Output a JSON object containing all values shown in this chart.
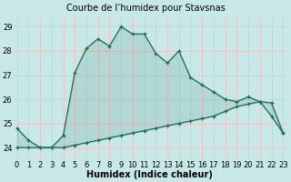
{
  "title": "Courbe de l’humidex pour Stavsnas",
  "xlabel": "Humidex (Indice chaleur)",
  "x": [
    0,
    1,
    2,
    3,
    4,
    5,
    6,
    7,
    8,
    9,
    10,
    11,
    12,
    13,
    14,
    15,
    16,
    17,
    18,
    19,
    20,
    21,
    22,
    23
  ],
  "line1": [
    24.8,
    24.3,
    24.0,
    24.0,
    24.5,
    27.1,
    28.1,
    28.5,
    28.2,
    29.0,
    28.7,
    28.7,
    27.9,
    27.5,
    28.0,
    26.9,
    26.6,
    26.3,
    26.0,
    25.9,
    26.1,
    25.9,
    25.3,
    24.6
  ],
  "line2": [
    24.0,
    24.0,
    24.0,
    24.0,
    24.0,
    24.1,
    24.2,
    24.3,
    24.4,
    24.5,
    24.6,
    24.7,
    24.8,
    24.9,
    25.0,
    25.1,
    25.2,
    25.3,
    25.5,
    25.7,
    25.8,
    25.9,
    25.85,
    24.6
  ],
  "line_color": "#1a6b5a",
  "bg_color": "#c8e8e8",
  "grid_color": "#e8c8c8",
  "ylim": [
    23.5,
    29.4
  ],
  "yticks": [
    24,
    25,
    26,
    27,
    28,
    29
  ],
  "xlim": [
    -0.3,
    23.3
  ],
  "title_fontsize": 7.0,
  "label_fontsize": 7.0,
  "tick_fontsize": 6.0
}
